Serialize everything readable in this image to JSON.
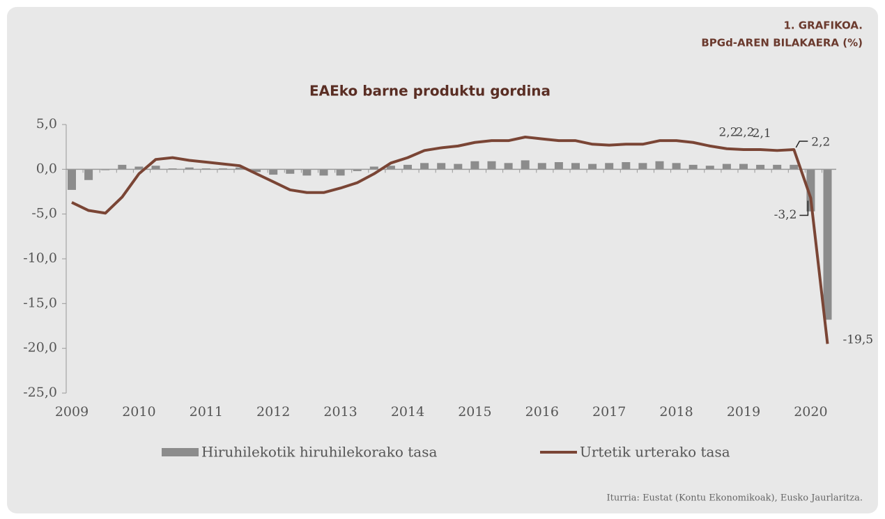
{
  "chart_data": {
    "type": "bar",
    "header": [
      "1. GRAFIKOA.",
      "BPGd-AREN BILAKAERA (%)"
    ],
    "title": "EAEko barne produktu gordina",
    "source": "Iturria: Eustat (Kontu Ekonomikoak), Eusko Jaurlaritza.",
    "categories": [
      "2009",
      null,
      null,
      null,
      "2010",
      null,
      null,
      null,
      "2011",
      null,
      null,
      null,
      "2012",
      null,
      null,
      null,
      "2013",
      null,
      null,
      null,
      "2014",
      null,
      null,
      null,
      "2015",
      null,
      null,
      null,
      "2016",
      null,
      null,
      null,
      "2017",
      null,
      null,
      null,
      "2018",
      null,
      null,
      null,
      "2019",
      null,
      null,
      null,
      "2020",
      null
    ],
    "ylim": [
      -25,
      5
    ],
    "yticks": [
      {
        "value": -25,
        "label": "-25,0"
      },
      {
        "value": -20,
        "label": "-20,0"
      },
      {
        "value": -15,
        "label": "-15,0"
      },
      {
        "value": -10,
        "label": "-10,0"
      },
      {
        "value": -5,
        "label": "-5,0"
      },
      {
        "value": 0,
        "label": "0,0"
      },
      {
        "value": 5,
        "label": "5,0"
      }
    ],
    "series": [
      {
        "name": "Hiruhilekotik hiruhilekorako tasa",
        "type": "bar",
        "color": "#8c8c8c",
        "values": [
          -2.3,
          -1.2,
          -0.1,
          0.5,
          0.3,
          0.4,
          0.1,
          0.2,
          0.1,
          0.1,
          0.2,
          -0.3,
          -0.6,
          -0.5,
          -0.7,
          -0.7,
          -0.7,
          -0.2,
          0.3,
          0.4,
          0.5,
          0.7,
          0.7,
          0.6,
          0.9,
          0.9,
          0.7,
          1.0,
          0.7,
          0.8,
          0.7,
          0.6,
          0.7,
          0.8,
          0.7,
          0.9,
          0.7,
          0.5,
          0.4,
          0.6,
          0.6,
          0.5,
          0.5,
          0.5,
          -4.7,
          -16.8
        ]
      },
      {
        "name": "Urtetik urterako tasa",
        "type": "line",
        "color": "#7a4535",
        "values": [
          -3.7,
          -4.6,
          -4.9,
          -3.1,
          -0.5,
          1.1,
          1.3,
          1.0,
          0.8,
          0.6,
          0.4,
          -0.5,
          -1.4,
          -2.3,
          -2.6,
          -2.6,
          -2.1,
          -1.5,
          -0.5,
          0.7,
          1.3,
          2.1,
          2.4,
          2.6,
          3.0,
          3.2,
          3.2,
          3.6,
          3.4,
          3.2,
          3.2,
          2.8,
          2.7,
          2.8,
          2.8,
          3.2,
          3.2,
          3.0,
          2.6,
          2.3,
          2.2,
          2.2,
          2.1,
          2.2,
          -3.2,
          -19.5
        ],
        "value_labels": [
          null,
          null,
          null,
          null,
          null,
          null,
          null,
          null,
          null,
          null,
          null,
          null,
          null,
          null,
          null,
          null,
          null,
          null,
          null,
          null,
          null,
          null,
          null,
          null,
          null,
          null,
          null,
          null,
          null,
          null,
          null,
          null,
          null,
          null,
          null,
          null,
          null,
          null,
          null,
          null,
          "2,2",
          "2,2",
          "2,1",
          "2,2",
          "-3,2",
          "-19,5"
        ]
      }
    ]
  }
}
